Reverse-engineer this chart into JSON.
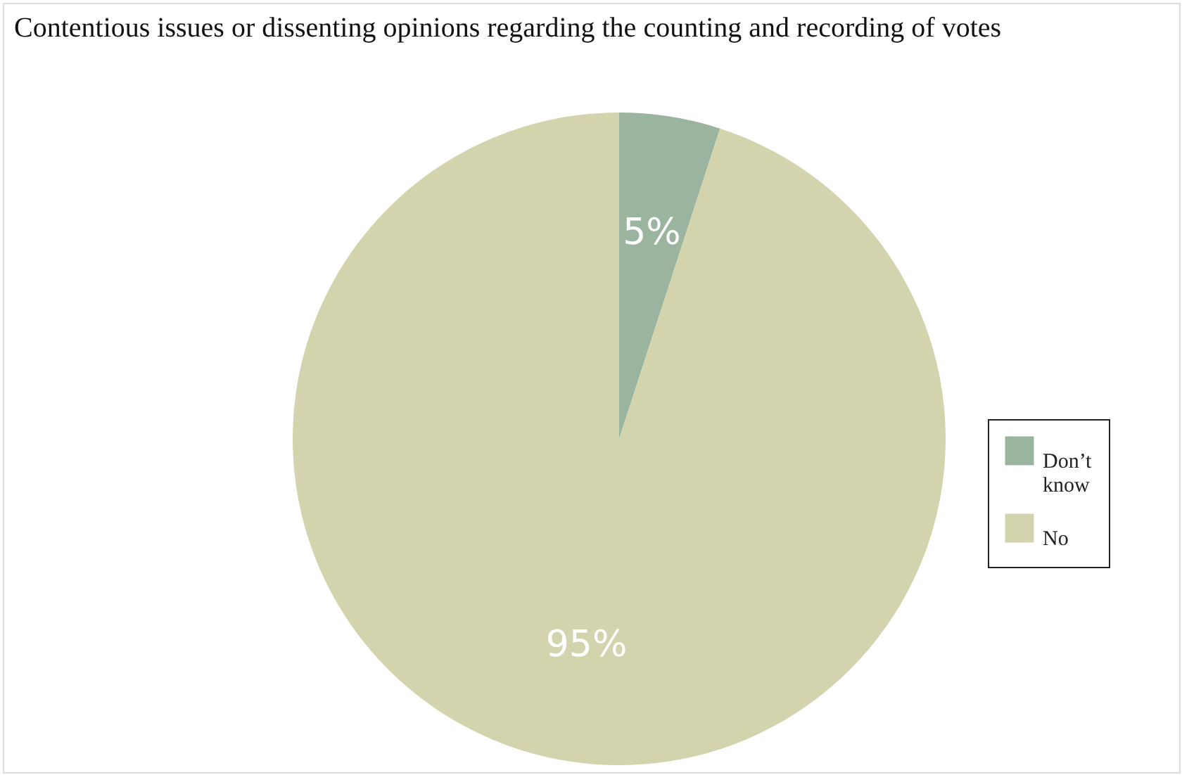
{
  "chart_data": {
    "type": "pie",
    "title": "Contentious issues or dissenting opinions regarding the counting and recording of votes",
    "categories": [
      "Don’t know",
      "No"
    ],
    "values": [
      5,
      95
    ],
    "colors": [
      "#9bb49f",
      "#d3d4ae"
    ],
    "value_labels": [
      "5%",
      "95%"
    ],
    "legend": "right"
  }
}
